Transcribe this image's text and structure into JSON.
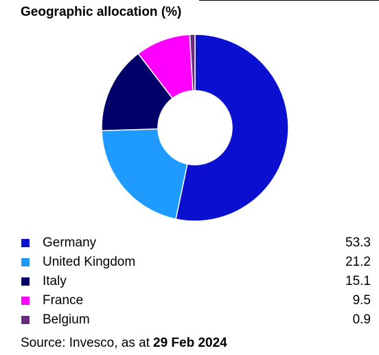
{
  "chart_data": {
    "type": "pie",
    "title": "Geographic allocation (%)",
    "categories": [
      "Germany",
      "United Kingdom",
      "Italy",
      "France",
      "Belgium"
    ],
    "values": [
      53.3,
      21.2,
      15.1,
      9.5,
      0.9
    ],
    "colors": [
      "#0a0fd0",
      "#1f9bff",
      "#000068",
      "#ff00ff",
      "#6a2c7c"
    ],
    "donut": true,
    "source": {
      "text": "Source: Invesco, as at",
      "date": "29 Feb 2024"
    }
  }
}
